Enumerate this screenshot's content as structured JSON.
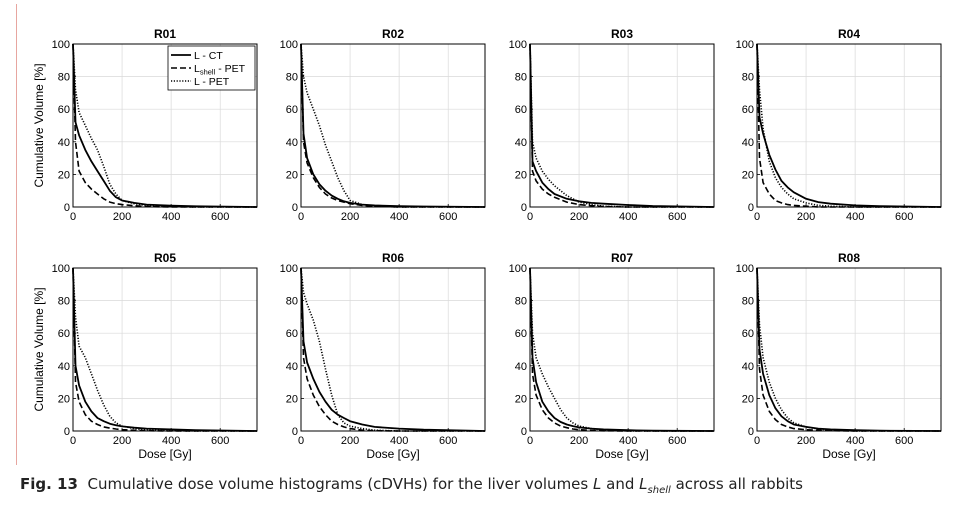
{
  "caption": {
    "fig_label": "Fig. 13",
    "text_before": "Cumulative dose volume histograms (cDVHs) for the liver volumes",
    "var_L": "L",
    "and_word": "and",
    "var_Lshell": "L",
    "var_Lshell_sub": "shell",
    "text_after": "across all rabbits"
  },
  "chart_data": [
    {
      "type": "line",
      "title": "R01",
      "xlabel": "",
      "ylabel": "Cumulative Volume [%]",
      "xlim": [
        0,
        750
      ],
      "ylim": [
        0,
        100
      ],
      "xticks": [
        0,
        200,
        400,
        600
      ],
      "yticks": [
        0,
        20,
        40,
        60,
        80,
        100
      ],
      "grid": true,
      "legend": "top-right",
      "x": [
        0,
        10,
        25,
        50,
        75,
        100,
        125,
        150,
        175,
        200,
        250,
        300,
        400,
        500,
        750
      ],
      "series": [
        {
          "name": "L - CT",
          "style": "solid",
          "values": [
            100,
            52,
            44,
            35,
            28,
            22,
            16,
            10,
            6,
            4,
            2.5,
            1.5,
            0.8,
            0.4,
            0
          ]
        },
        {
          "name": "L_shell - PET",
          "style": "dashed",
          "values": [
            100,
            40,
            22,
            15,
            11,
            8,
            5,
            3,
            2,
            1.5,
            0.8,
            0.3,
            0,
            0,
            0
          ]
        },
        {
          "name": "L - PET",
          "style": "dotted",
          "values": [
            100,
            72,
            58,
            50,
            42,
            35,
            25,
            14,
            8,
            4,
            2,
            1,
            0.3,
            0,
            0
          ]
        }
      ]
    },
    {
      "type": "line",
      "title": "R02",
      "xlabel": "",
      "ylabel": "",
      "xlim": [
        0,
        750
      ],
      "ylim": [
        0,
        100
      ],
      "xticks": [
        0,
        200,
        400,
        600
      ],
      "yticks": [
        0,
        20,
        40,
        60,
        80,
        100
      ],
      "grid": true,
      "legend": "none",
      "x": [
        0,
        10,
        25,
        50,
        75,
        100,
        125,
        150,
        175,
        200,
        250,
        300,
        400,
        500,
        750
      ],
      "series": [
        {
          "name": "L - CT",
          "style": "solid",
          "values": [
            100,
            45,
            30,
            20,
            14,
            10,
            7,
            5,
            3.5,
            2.5,
            1.5,
            1,
            0.5,
            0.3,
            0
          ]
        },
        {
          "name": "L_shell - PET",
          "style": "dashed",
          "values": [
            100,
            40,
            27,
            18,
            12,
            8,
            5.5,
            4,
            3,
            2,
            1,
            0.5,
            0,
            0,
            0
          ]
        },
        {
          "name": "L - PET",
          "style": "dotted",
          "values": [
            100,
            80,
            70,
            60,
            50,
            38,
            28,
            18,
            10,
            4,
            1.5,
            0.5,
            0,
            0,
            0
          ]
        }
      ]
    },
    {
      "type": "line",
      "title": "R03",
      "xlabel": "",
      "ylabel": "",
      "xlim": [
        0,
        750
      ],
      "ylim": [
        0,
        100
      ],
      "xticks": [
        0,
        200,
        400,
        600
      ],
      "yticks": [
        0,
        20,
        40,
        60,
        80,
        100
      ],
      "grid": true,
      "legend": "none",
      "x": [
        0,
        10,
        25,
        50,
        75,
        100,
        150,
        200,
        250,
        300,
        400,
        500,
        750
      ],
      "series": [
        {
          "name": "L - CT",
          "style": "solid",
          "values": [
            100,
            28,
            22,
            15,
            11,
            8,
            5,
            3.5,
            2.5,
            2,
            1.2,
            0.6,
            0
          ]
        },
        {
          "name": "L_shell - PET",
          "style": "dashed",
          "values": [
            100,
            22,
            16,
            11,
            8,
            6,
            3,
            1.5,
            0.8,
            0.3,
            0,
            0,
            0
          ]
        },
        {
          "name": "L - PET",
          "style": "dotted",
          "values": [
            100,
            40,
            30,
            22,
            17,
            13,
            7,
            3,
            1.5,
            0.5,
            0,
            0,
            0
          ]
        }
      ]
    },
    {
      "type": "line",
      "title": "R04",
      "xlabel": "",
      "ylabel": "",
      "xlim": [
        0,
        750
      ],
      "ylim": [
        0,
        100
      ],
      "xticks": [
        0,
        200,
        400,
        600
      ],
      "yticks": [
        0,
        20,
        40,
        60,
        80,
        100
      ],
      "grid": true,
      "legend": "none",
      "x": [
        0,
        10,
        25,
        50,
        75,
        100,
        125,
        150,
        200,
        250,
        300,
        400,
        500,
        750
      ],
      "series": [
        {
          "name": "L - CT",
          "style": "solid",
          "values": [
            100,
            55,
            45,
            32,
            23,
            16,
            12,
            9,
            5,
            3,
            2,
            1,
            0.5,
            0
          ]
        },
        {
          "name": "L_shell - PET",
          "style": "dashed",
          "values": [
            100,
            30,
            15,
            8,
            4,
            2.5,
            1.5,
            1,
            0.5,
            0,
            0,
            0,
            0,
            0
          ]
        },
        {
          "name": "L - PET",
          "style": "dotted",
          "values": [
            100,
            72,
            48,
            28,
            18,
            12,
            8,
            5,
            2.5,
            1,
            0.5,
            0,
            0,
            0
          ]
        }
      ]
    },
    {
      "type": "line",
      "title": "R05",
      "xlabel": "Dose [Gy]",
      "ylabel": "Cumulative Volume [%]",
      "xlim": [
        0,
        750
      ],
      "ylim": [
        0,
        100
      ],
      "xticks": [
        0,
        200,
        400,
        600
      ],
      "yticks": [
        0,
        20,
        40,
        60,
        80,
        100
      ],
      "grid": true,
      "legend": "none",
      "x": [
        0,
        10,
        25,
        50,
        75,
        100,
        125,
        150,
        175,
        200,
        250,
        300,
        400,
        500,
        750
      ],
      "series": [
        {
          "name": "L - CT",
          "style": "solid",
          "values": [
            100,
            40,
            28,
            18,
            12,
            8,
            6,
            4.5,
            3.5,
            2.8,
            2,
            1.5,
            1,
            0.5,
            0
          ]
        },
        {
          "name": "L_shell - PET",
          "style": "dashed",
          "values": [
            100,
            30,
            18,
            10,
            6,
            4,
            2.5,
            1.8,
            1.2,
            0.8,
            0.4,
            0.2,
            0,
            0,
            0
          ]
        },
        {
          "name": "L - PET",
          "style": "dotted",
          "values": [
            100,
            70,
            52,
            45,
            35,
            25,
            16,
            9,
            5,
            3,
            1.5,
            0.7,
            0.2,
            0,
            0
          ]
        }
      ]
    },
    {
      "type": "line",
      "title": "R06",
      "xlabel": "Dose [Gy]",
      "ylabel": "",
      "xlim": [
        0,
        750
      ],
      "ylim": [
        0,
        100
      ],
      "xticks": [
        0,
        200,
        400,
        600
      ],
      "yticks": [
        0,
        20,
        40,
        60,
        80,
        100
      ],
      "grid": true,
      "legend": "none",
      "x": [
        0,
        10,
        25,
        50,
        75,
        100,
        125,
        150,
        175,
        200,
        250,
        300,
        400,
        500,
        750
      ],
      "series": [
        {
          "name": "L - CT",
          "style": "solid",
          "values": [
            100,
            55,
            42,
            32,
            24,
            18,
            13,
            10,
            8,
            6,
            4,
            2.5,
            1.5,
            0.8,
            0
          ]
        },
        {
          "name": "L_shell - PET",
          "style": "dashed",
          "values": [
            100,
            45,
            32,
            22,
            15,
            10,
            6,
            4,
            2.5,
            1.5,
            0.5,
            0.2,
            0,
            0,
            0
          ]
        },
        {
          "name": "L - PET",
          "style": "dotted",
          "values": [
            100,
            85,
            78,
            68,
            55,
            38,
            22,
            10,
            5,
            3,
            1.5,
            0.5,
            0,
            0,
            0
          ]
        }
      ]
    },
    {
      "type": "line",
      "title": "R07",
      "xlabel": "Dose [Gy]",
      "ylabel": "",
      "xlim": [
        0,
        750
      ],
      "ylim": [
        0,
        100
      ],
      "xticks": [
        0,
        200,
        400,
        600
      ],
      "yticks": [
        0,
        20,
        40,
        60,
        80,
        100
      ],
      "grid": true,
      "legend": "none",
      "x": [
        0,
        10,
        25,
        50,
        75,
        100,
        125,
        150,
        175,
        200,
        250,
        300,
        400,
        500,
        750
      ],
      "series": [
        {
          "name": "L - CT",
          "style": "solid",
          "values": [
            100,
            45,
            30,
            18,
            12,
            8,
            5.5,
            4,
            3,
            2.2,
            1.5,
            1,
            0.5,
            0.2,
            0
          ]
        },
        {
          "name": "L_shell - PET",
          "style": "dashed",
          "values": [
            100,
            35,
            22,
            13,
            8,
            5,
            3,
            2,
            1.2,
            0.8,
            0.3,
            0.1,
            0,
            0,
            0
          ]
        },
        {
          "name": "L - PET",
          "style": "dotted",
          "values": [
            100,
            60,
            45,
            35,
            27,
            20,
            13,
            8,
            5,
            3,
            1.5,
            0.5,
            0,
            0,
            0
          ]
        }
      ]
    },
    {
      "type": "line",
      "title": "R08",
      "xlabel": "Dose [Gy]",
      "ylabel": "",
      "xlim": [
        0,
        750
      ],
      "ylim": [
        0,
        100
      ],
      "xticks": [
        0,
        200,
        400,
        600
      ],
      "yticks": [
        0,
        20,
        40,
        60,
        80,
        100
      ],
      "grid": true,
      "legend": "none",
      "x": [
        0,
        10,
        25,
        50,
        75,
        100,
        125,
        150,
        200,
        250,
        300,
        400,
        500,
        750
      ],
      "series": [
        {
          "name": "L - CT",
          "style": "solid",
          "values": [
            100,
            50,
            35,
            22,
            14,
            9,
            6,
            4,
            2.5,
            1.5,
            1,
            0.5,
            0.2,
            0
          ]
        },
        {
          "name": "L_shell - PET",
          "style": "dashed",
          "values": [
            100,
            38,
            22,
            12,
            7,
            4,
            2.5,
            1.5,
            0.8,
            0.4,
            0.2,
            0,
            0,
            0
          ]
        },
        {
          "name": "L - PET",
          "style": "dotted",
          "values": [
            100,
            65,
            45,
            30,
            20,
            13,
            8,
            5,
            2.5,
            1.2,
            0.5,
            0,
            0,
            0
          ]
        }
      ]
    }
  ]
}
